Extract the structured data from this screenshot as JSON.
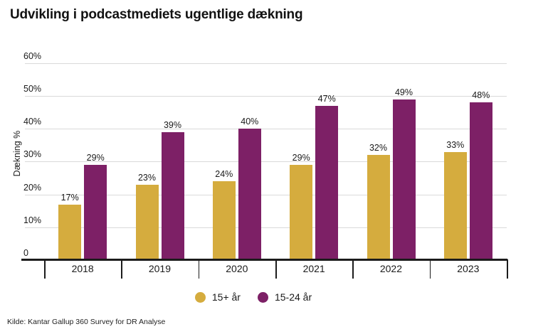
{
  "title": "Udvikling i podcastmediets ugentlige dækning",
  "source": "Kilde: Kantar Gallup 360 Survey for DR Analyse",
  "colors": {
    "series_gold": "#D5AC3E",
    "series_purple": "#7D2066",
    "gridline": "#DADADA",
    "axis": "#1C1C1C",
    "text": "#1A1A1A"
  },
  "chart_data": {
    "type": "bar",
    "title": "Udvikling i podcastmediets ugentlige dækning",
    "categories": [
      "2018",
      "2019",
      "2020",
      "2021",
      "2022",
      "2023"
    ],
    "series": [
      {
        "name": "15+ år",
        "color": "#D5AC3E",
        "values": [
          17,
          23,
          24,
          29,
          32,
          33
        ]
      },
      {
        "name": "15-24 år",
        "color": "#7D2066",
        "values": [
          29,
          39,
          40,
          47,
          49,
          48
        ]
      }
    ],
    "xlabel": "",
    "ylabel": "Dækning %",
    "ylim": [
      0,
      60
    ],
    "yticks": [
      {
        "value": 0,
        "label": "0"
      },
      {
        "value": 10,
        "label": "10%"
      },
      {
        "value": 20,
        "label": "20%"
      },
      {
        "value": 30,
        "label": "30%"
      },
      {
        "value": 40,
        "label": "40%"
      },
      {
        "value": 50,
        "label": "50%"
      },
      {
        "value": 60,
        "label": "60%"
      }
    ],
    "grid": "horizontal",
    "value_label_suffix": "%",
    "legend_position": "bottom"
  }
}
